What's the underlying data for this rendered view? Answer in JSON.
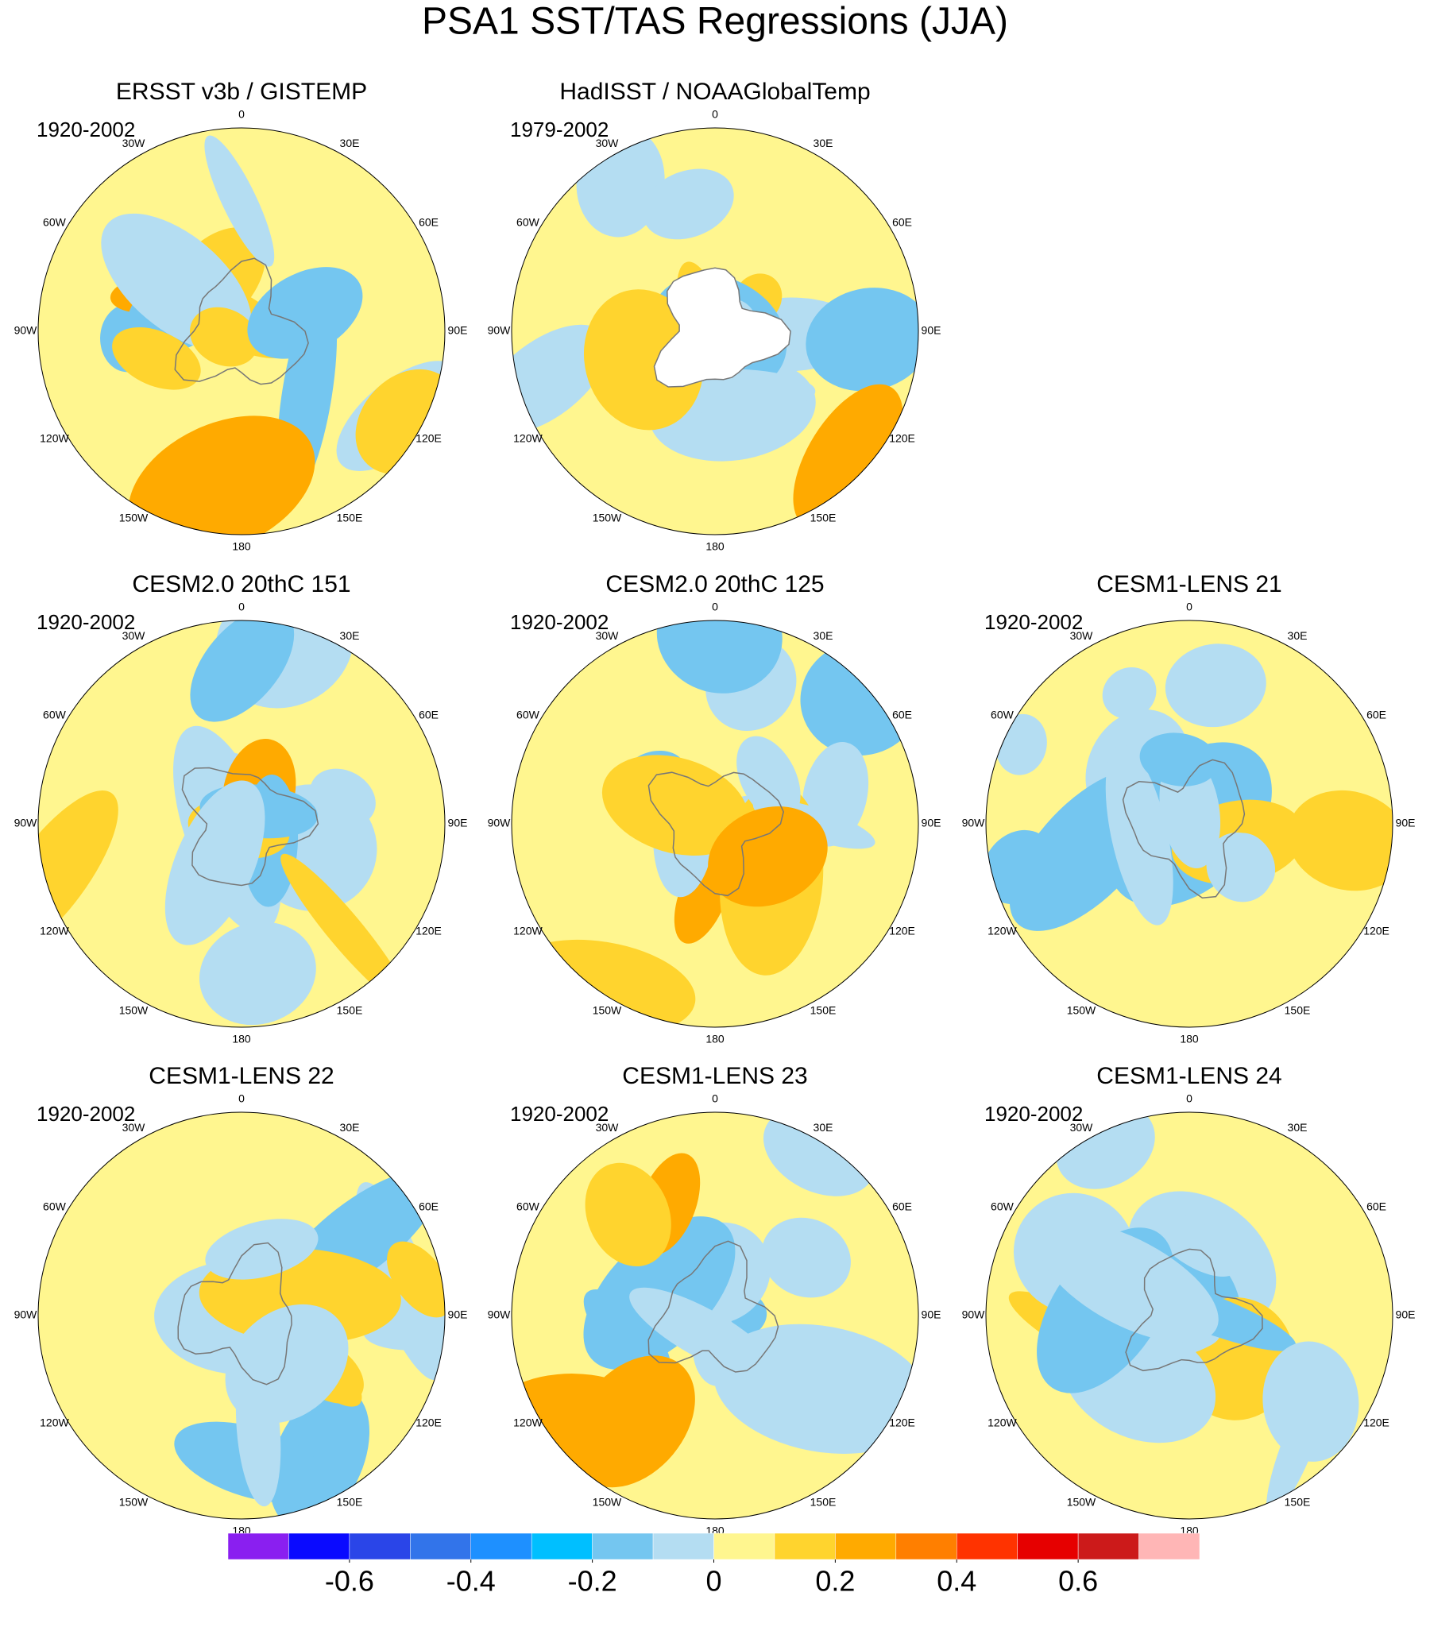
{
  "title": "PSA1 SST/TAS Regressions (JJA)",
  "panels": [
    {
      "title": "ERSST v3b / GISTEMP",
      "period": "1920-2002"
    },
    {
      "title": "HadISST / NOAAGlobalTemp",
      "period": "1979-2002"
    },
    {
      "title": "CESM2.0 20thC 151",
      "period": "1920-2002"
    },
    {
      "title": "CESM2.0 20thC 125",
      "period": "1920-2002"
    },
    {
      "title": "CESM1-LENS 21",
      "period": "1920-2002"
    },
    {
      "title": "CESM1-LENS 22",
      "period": "1920-2002"
    },
    {
      "title": "CESM1-LENS 23",
      "period": "1920-2002"
    },
    {
      "title": "CESM1-LENS 24",
      "period": "1920-2002"
    }
  ],
  "longitude_labels": [
    "0",
    "30E",
    "60E",
    "90E",
    "120E",
    "150E",
    "180",
    "150W",
    "120W",
    "90W",
    "60W",
    "30W"
  ],
  "colorbar": {
    "colors": [
      "#8a1ff0",
      "#0a0aff",
      "#2a45e8",
      "#3274ea",
      "#1e90ff",
      "#00bfff",
      "#74c6f0",
      "#b4ddf2",
      "#fff68f",
      "#ffd42e",
      "#ffaa00",
      "#ff7f00",
      "#ff3300",
      "#e60000",
      "#cc1a1a",
      "#ffb6b6"
    ],
    "clim": [
      -0.8,
      0.8
    ],
    "ticks": [
      -0.6,
      -0.4,
      -0.2,
      0,
      0.2,
      0.4,
      0.6
    ]
  }
}
